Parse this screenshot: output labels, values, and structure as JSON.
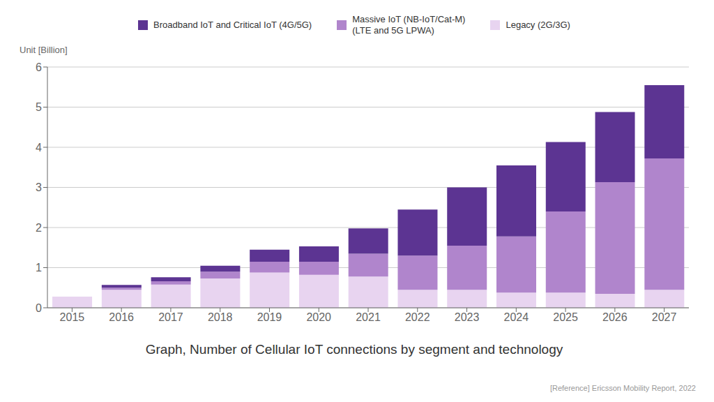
{
  "chart_data": {
    "type": "bar",
    "stacked": true,
    "title": "Graph, Number of Cellular IoT connections by segment and technology",
    "y_label": "Unit [Billion]",
    "annotations": [
      "[Reference] Ericsson Mobility Report, 2022"
    ],
    "categories": [
      "2015",
      "2016",
      "2017",
      "2018",
      "2019",
      "2020",
      "2021",
      "2022",
      "2023",
      "2024",
      "2025",
      "2026",
      "2027"
    ],
    "series": [
      {
        "name": "Legacy (2G/3G)",
        "color": "#e8d4f0",
        "values": [
          0.28,
          0.45,
          0.58,
          0.73,
          0.88,
          0.82,
          0.78,
          0.45,
          0.45,
          0.38,
          0.38,
          0.35,
          0.45
        ]
      },
      {
        "name": "Massive IoT (NB-IoT/Cat-M)\n(LTE and 5G LPWA)",
        "color": "#b085cc",
        "values": [
          0.0,
          0.05,
          0.08,
          0.17,
          0.27,
          0.33,
          0.57,
          0.85,
          1.1,
          1.4,
          2.02,
          2.78,
          3.27
        ]
      },
      {
        "name": "Broadband IoT and Critical IoT (4G/5G)",
        "color": "#5c3492",
        "values": [
          0.0,
          0.07,
          0.1,
          0.15,
          0.3,
          0.38,
          0.63,
          1.15,
          1.45,
          1.77,
          1.73,
          1.75,
          1.83
        ]
      }
    ],
    "ylim": [
      0,
      6
    ],
    "yticks": [
      0,
      1,
      2,
      3,
      4,
      5,
      6
    ],
    "grid": true,
    "legend": "top"
  }
}
